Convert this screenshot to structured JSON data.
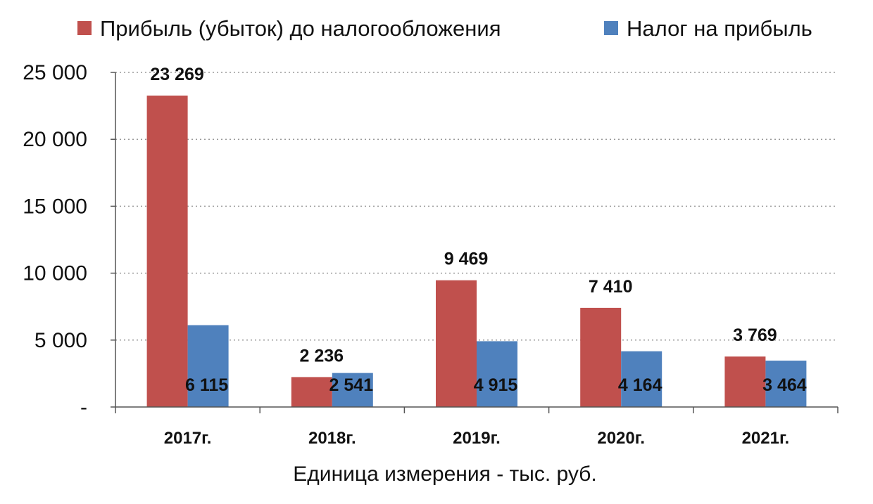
{
  "chart_data": {
    "type": "bar",
    "categories": [
      "2017г.",
      "2018г.",
      "2019г.",
      "2020г.",
      "2021г."
    ],
    "series": [
      {
        "name": "Прибыль (убыток) до налогообложения",
        "color": "#c0504d",
        "values": [
          23269,
          2236,
          9469,
          7410,
          3769
        ],
        "labels": [
          "23 269",
          "2 236",
          "9 469",
          "7 410",
          "3 769"
        ]
      },
      {
        "name": "Налог на прибыль",
        "color": "#4f81bd",
        "values": [
          6115,
          2541,
          4915,
          4164,
          3464
        ],
        "labels": [
          "6 115",
          "2 541",
          "4 915",
          "4 164",
          "3 464"
        ]
      }
    ],
    "title": "",
    "xlabel": "Единица измерения - тыс. руб.",
    "ylabel": "",
    "ylim": [
      0,
      25000
    ],
    "yticks": [
      0,
      5000,
      10000,
      15000,
      20000,
      25000
    ],
    "ytick_labels": [
      "-",
      "5 000",
      "10 000",
      "15 000",
      "20 000",
      "25 000"
    ],
    "grid": true,
    "legend_position": "top"
  }
}
